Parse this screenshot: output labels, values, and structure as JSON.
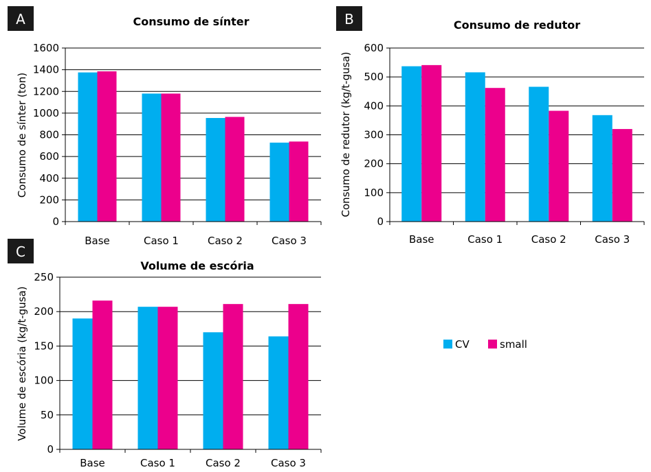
{
  "colors": {
    "CV": "#00aeef",
    "small": "#ec008c",
    "badge": "#1a1a1a",
    "axis": "#000000"
  },
  "legend": {
    "position": "right",
    "items": [
      "CV",
      "small"
    ]
  },
  "chart_data": [
    {
      "panel": "A",
      "type": "bar",
      "title": "Consumo de sínter",
      "xlabel": "",
      "ylabel": "Consumo de sínter (ton)",
      "ylim": [
        0,
        1600
      ],
      "yticks": [
        0,
        200,
        400,
        600,
        800,
        1000,
        1200,
        1400,
        1600
      ],
      "categories": [
        "Base",
        "Caso 1",
        "Caso 2",
        "Caso 3"
      ],
      "series": [
        {
          "name": "CV",
          "values": [
            1375,
            1180,
            955,
            728
          ]
        },
        {
          "name": "small",
          "values": [
            1385,
            1180,
            965,
            738
          ]
        }
      ],
      "grid": true
    },
    {
      "panel": "B",
      "type": "bar",
      "title": "Consumo de redutor",
      "xlabel": "",
      "ylabel": "Consumo de redutor (kg/t-gusa)",
      "ylim": [
        0,
        600
      ],
      "yticks": [
        0,
        100,
        200,
        300,
        400,
        500,
        600
      ],
      "categories": [
        "Base",
        "Caso 1",
        "Caso 2",
        "Caso 3"
      ],
      "series": [
        {
          "name": "CV",
          "values": [
            537,
            516,
            466,
            368
          ]
        },
        {
          "name": "small",
          "values": [
            541,
            462,
            383,
            320
          ]
        }
      ],
      "grid": true
    },
    {
      "panel": "C",
      "type": "bar",
      "title": "Volume de escória",
      "xlabel": "",
      "ylabel": "Volume de escória (kg/t-gusa)",
      "ylim": [
        0,
        250
      ],
      "yticks": [
        0,
        50,
        100,
        150,
        200,
        250
      ],
      "categories": [
        "Base",
        "Caso 1",
        "Caso 2",
        "Caso 3"
      ],
      "series": [
        {
          "name": "CV",
          "values": [
            190,
            207,
            170,
            164
          ]
        },
        {
          "name": "small",
          "values": [
            216,
            207,
            211,
            211
          ]
        }
      ],
      "grid": true
    }
  ]
}
